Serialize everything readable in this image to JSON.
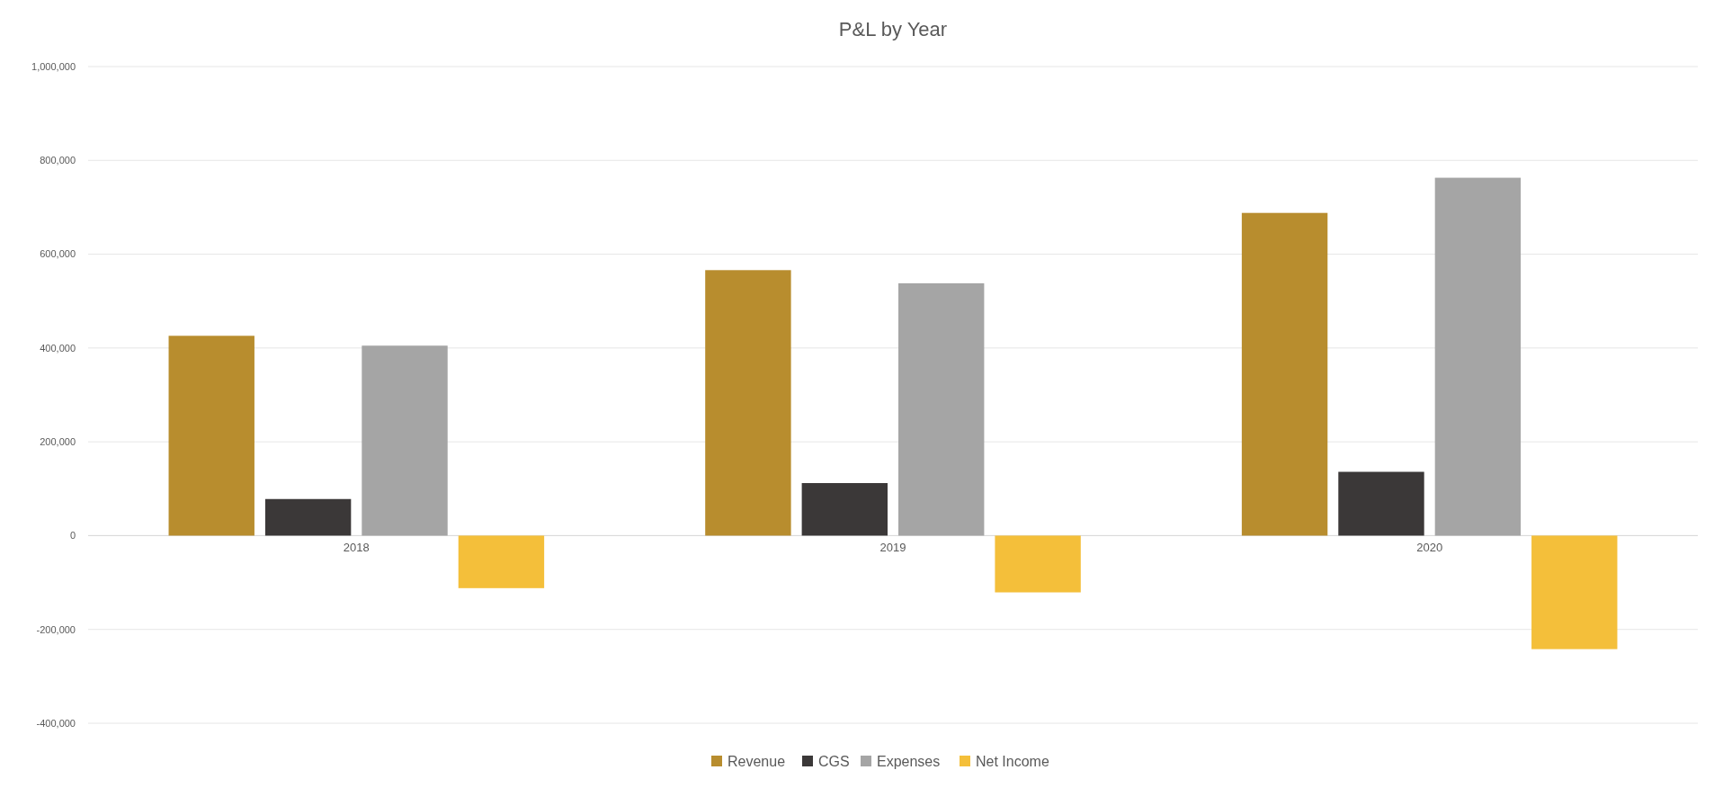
{
  "chart_data": {
    "type": "bar",
    "title": "P&L by Year",
    "categories": [
      "2018",
      "2019",
      "2020"
    ],
    "series": [
      {
        "name": "Revenue",
        "color": "#b88d2e",
        "values": [
          426000,
          566000,
          688000
        ]
      },
      {
        "name": "CGS",
        "color": "#3b3838",
        "values": [
          78000,
          112000,
          136000
        ]
      },
      {
        "name": "Expenses",
        "color": "#a5a5a5",
        "values": [
          405000,
          538000,
          763000
        ]
      },
      {
        "name": "Net Income",
        "color": "#f4bf3a",
        "values": [
          -112000,
          -121000,
          -242000
        ]
      }
    ],
    "ylim": [
      -400000,
      1000000
    ],
    "yticks": [
      {
        "value": -400000,
        "label": "-400,000"
      },
      {
        "value": -200000,
        "label": "-200,000"
      },
      {
        "value": 0,
        "label": "0"
      },
      {
        "value": 200000,
        "label": "200,000"
      },
      {
        "value": 400000,
        "label": "400,000"
      },
      {
        "value": 600000,
        "label": "600,000"
      },
      {
        "value": 800000,
        "label": "800,000"
      },
      {
        "value": 1000000,
        "label": "1,000,000"
      }
    ],
    "grid": "y",
    "legend": "bottom"
  }
}
